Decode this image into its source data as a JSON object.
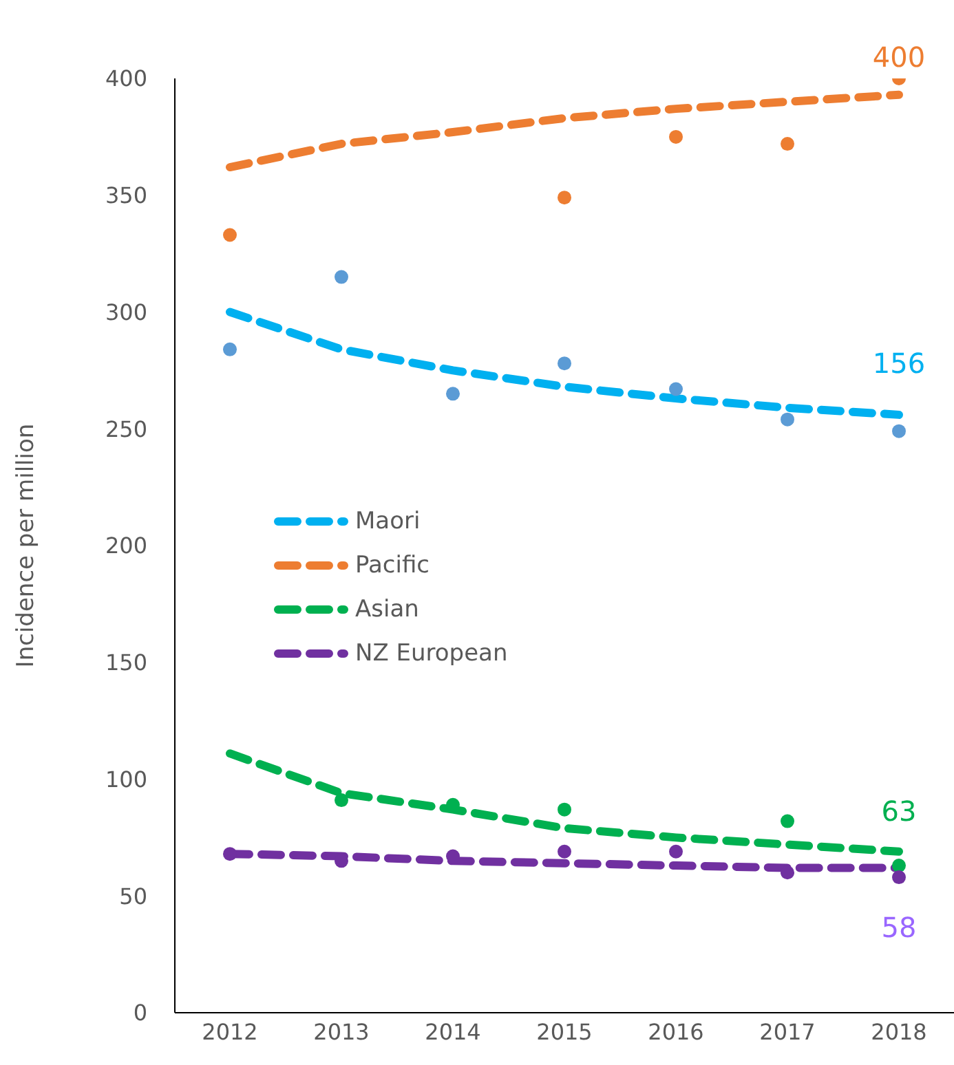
{
  "chart_data": {
    "type": "line",
    "ylabel": "Incidence per million",
    "categories": [
      "2012",
      "2013",
      "2014",
      "2015",
      "2016",
      "2017",
      "2018"
    ],
    "ylim": [
      0,
      400
    ],
    "yticks": [
      0,
      50,
      100,
      150,
      200,
      250,
      300,
      350,
      400
    ],
    "grid": false,
    "legend": "left",
    "series": [
      {
        "name": "Maori",
        "color": "#00b0f0",
        "line_style": "dashed",
        "marker": "none",
        "values": [
          300,
          284,
          275,
          268,
          263,
          259,
          256
        ]
      },
      {
        "name": "Pacific",
        "color": "#ed7d31",
        "line_style": "dashed",
        "marker": "none",
        "values": [
          362,
          372,
          377,
          383,
          387,
          390,
          393
        ]
      },
      {
        "name": "Asian",
        "color": "#00b050",
        "line_style": "dashed",
        "marker": "none",
        "values": [
          111,
          94,
          87,
          79,
          75,
          72,
          69
        ]
      },
      {
        "name": "NZ European",
        "color": "#7030a0",
        "line_style": "dashed",
        "marker": "none",
        "values": [
          68,
          67,
          65,
          64,
          63,
          62,
          62
        ]
      },
      {
        "type": "scatter",
        "color": "#5b9bd5",
        "marker": "circle",
        "values": [
          284,
          315,
          265,
          278,
          267,
          254,
          249
        ]
      },
      {
        "type": "scatter",
        "color": "#ed7d31",
        "marker": "circle",
        "values": [
          333,
          null,
          null,
          349,
          375,
          372,
          400
        ]
      },
      {
        "type": "scatter",
        "color": "#00b050",
        "marker": "circle",
        "values": [
          null,
          91,
          89,
          87,
          null,
          82,
          63
        ]
      },
      {
        "type": "scatter",
        "color": "#7030a0",
        "marker": "circle",
        "values": [
          68,
          65,
          67,
          69,
          69,
          60,
          58
        ]
      }
    ],
    "annotations": [
      {
        "text": "400",
        "x": "2018",
        "y": 400
      },
      {
        "text": "156",
        "x": "2018",
        "y": 249
      },
      {
        "text": "63",
        "x": "2018",
        "y": 63
      },
      {
        "text": "58",
        "x": "2018",
        "y": 58
      }
    ]
  }
}
